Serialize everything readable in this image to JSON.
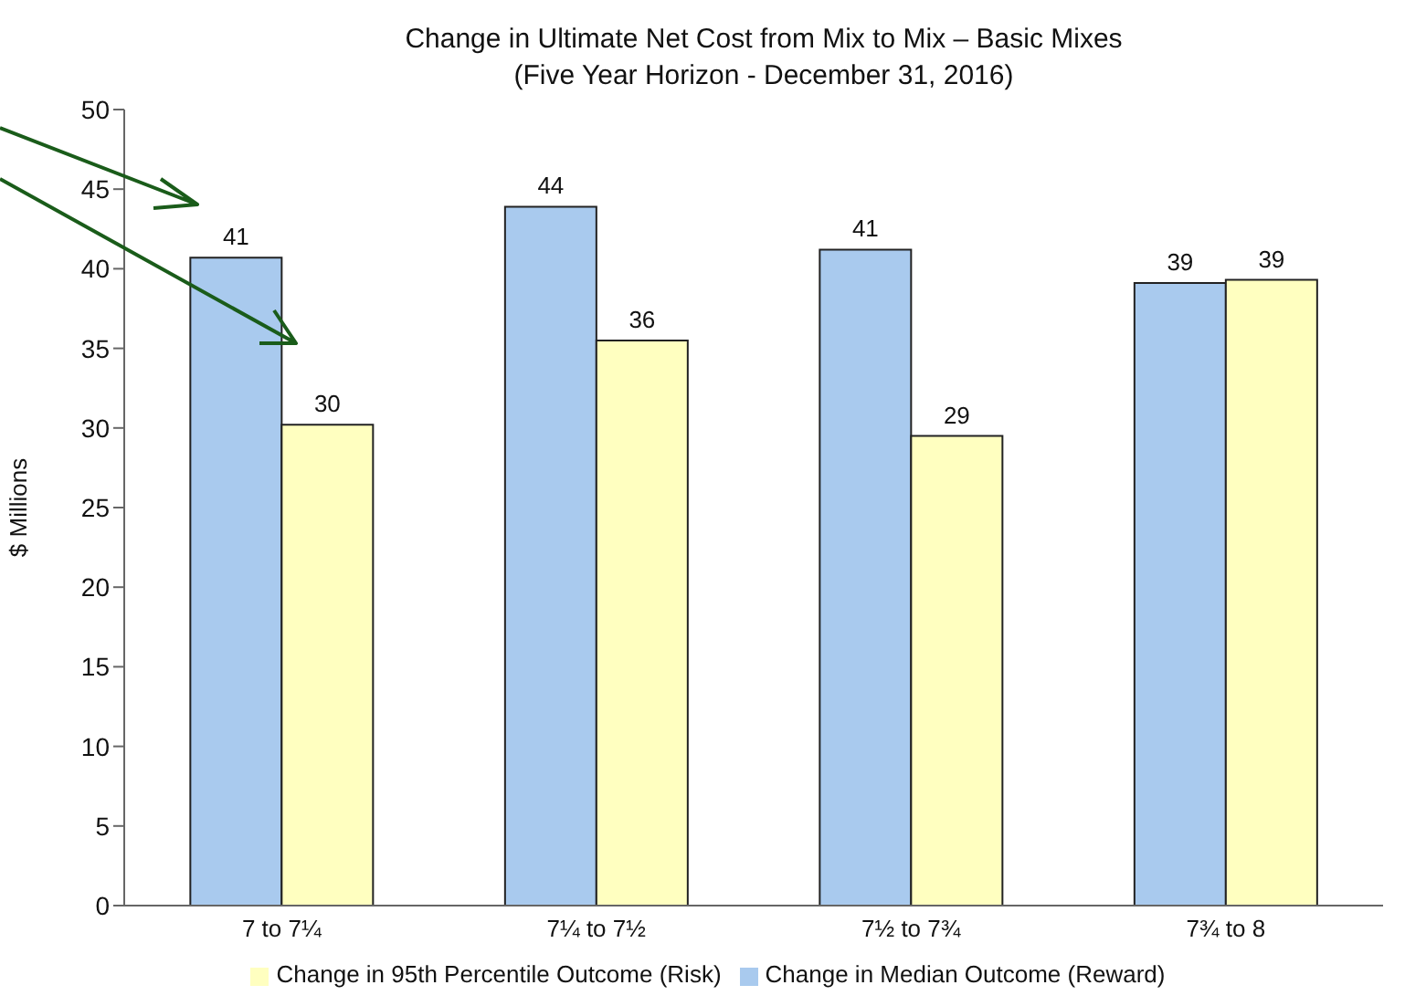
{
  "chart_data": {
    "type": "bar",
    "title": "Change  in Ultimate  Net Cost from Mix to Mix – Basic Mixes",
    "subtitle": "(Five Year Horizon - December 31, 2016)",
    "ylabel": "$ Millions",
    "categories": [
      "7 to 7¼",
      "7¼ to 7½",
      "7½ to 7¾",
      "7¾ to 8"
    ],
    "series": [
      {
        "name": "Change in Median Outcome (Reward)",
        "color": "#a9caee",
        "values": [
          40.7,
          43.9,
          41.2,
          39.1
        ],
        "value_labels": [
          "41",
          "44",
          "41",
          "39"
        ]
      },
      {
        "name": "Change in 95th Percentile Outcome (Risk)",
        "color": "#ffffc0",
        "values": [
          30.2,
          35.5,
          29.5,
          39.3
        ],
        "value_labels": [
          "30",
          "36",
          "29",
          "39"
        ]
      }
    ],
    "ylim": [
      0,
      50
    ],
    "yticks": [
      0,
      5,
      10,
      15,
      20,
      25,
      30,
      35,
      40,
      45,
      50
    ],
    "grid": false,
    "legend": "bottom"
  }
}
